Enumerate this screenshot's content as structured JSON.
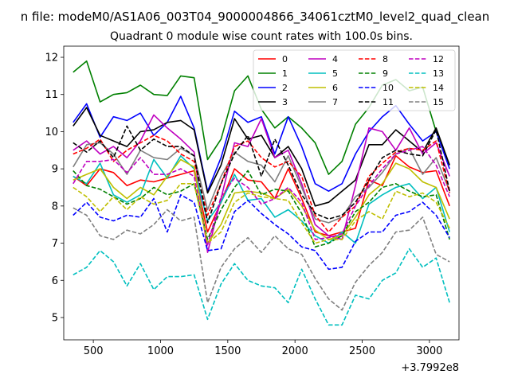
{
  "figure": {
    "suptitle": "n file: modeM0/AS1A06_003T04_9000004866_34061cztM0_level2_quad_clean",
    "title": "Quadrant 0 module wise count rates with 100.0s bins."
  },
  "chart_data": {
    "type": "line",
    "title": "Quadrant 0 module wise count rates with 100.0s bins.",
    "xlabel": "",
    "ylabel": "",
    "x_offset_label": "+3.7992e8",
    "x": [
      350,
      450,
      550,
      650,
      750,
      850,
      950,
      1050,
      1150,
      1250,
      1350,
      1450,
      1550,
      1650,
      1750,
      1850,
      1950,
      2050,
      2150,
      2250,
      2350,
      2450,
      2550,
      2650,
      2750,
      2850,
      2950,
      3050,
      3150
    ],
    "xlim": [
      280,
      3220
    ],
    "ylim": [
      4.4,
      12.3
    ],
    "xticks": [
      500,
      1000,
      1500,
      2000,
      2500,
      3000
    ],
    "yticks": [
      5,
      6,
      7,
      8,
      9,
      10,
      11,
      12
    ],
    "grid": false,
    "legend": {
      "placement": "top-right",
      "columns": 4
    },
    "series": [
      {
        "name": "0",
        "color": "#ff0000",
        "dash": "solid",
        "values": [
          8.8,
          8.55,
          9.0,
          8.9,
          8.55,
          8.7,
          8.65,
          8.75,
          8.85,
          8.95,
          7.3,
          8.1,
          9.0,
          8.7,
          8.65,
          8.2,
          9.0,
          8.2,
          7.3,
          7.2,
          7.3,
          7.4,
          8.7,
          8.55,
          9.35,
          9.05,
          8.9,
          8.95,
          8.0
        ]
      },
      {
        "name": "1",
        "color": "#008000",
        "dash": "solid",
        "values": [
          11.6,
          11.9,
          10.8,
          11.0,
          11.05,
          11.25,
          11.0,
          10.97,
          11.5,
          11.45,
          9.25,
          9.8,
          11.1,
          11.5,
          10.6,
          10.1,
          10.4,
          10.1,
          9.7,
          8.85,
          9.2,
          10.2,
          10.65,
          11.25,
          11.4,
          11.1,
          11.2,
          10.0,
          9.1
        ]
      },
      {
        "name": "2",
        "color": "#0000ff",
        "dash": "solid",
        "values": [
          10.25,
          10.75,
          9.85,
          10.4,
          10.3,
          10.5,
          9.9,
          10.25,
          10.95,
          10.1,
          8.4,
          9.3,
          10.55,
          10.25,
          10.4,
          9.4,
          10.4,
          9.6,
          8.6,
          8.4,
          8.6,
          9.4,
          10.0,
          10.4,
          10.7,
          10.2,
          9.75,
          10.0,
          9.0
        ]
      },
      {
        "name": "3",
        "color": "#000000",
        "dash": "solid",
        "values": [
          10.15,
          10.65,
          9.9,
          9.75,
          9.6,
          10.0,
          10.05,
          10.25,
          10.3,
          10.05,
          8.35,
          9.1,
          10.35,
          9.8,
          9.9,
          9.3,
          9.6,
          9.0,
          8.0,
          8.1,
          8.4,
          8.7,
          9.65,
          9.65,
          10.05,
          9.75,
          9.45,
          10.1,
          9.1
        ]
      },
      {
        "name": "4",
        "color": "#bf00bf",
        "dash": "solid",
        "values": [
          9.5,
          9.75,
          9.4,
          9.6,
          9.3,
          9.75,
          10.45,
          10.1,
          9.8,
          9.45,
          6.75,
          8.2,
          9.7,
          9.6,
          10.35,
          9.3,
          9.5,
          8.6,
          7.5,
          7.2,
          7.1,
          8.55,
          10.1,
          10.0,
          9.5,
          10.1,
          9.4,
          9.7,
          8.8
        ]
      },
      {
        "name": "5",
        "color": "#00bfbf",
        "dash": "solid",
        "values": [
          8.8,
          8.6,
          9.15,
          8.3,
          8.1,
          8.3,
          9.25,
          8.75,
          9.35,
          9.0,
          7.6,
          8.1,
          8.85,
          8.15,
          8.2,
          7.7,
          7.9,
          7.6,
          7.2,
          7.0,
          7.3,
          7.0,
          8.05,
          8.3,
          8.5,
          8.6,
          8.2,
          8.5,
          7.3
        ]
      },
      {
        "name": "6",
        "color": "#bfbf00",
        "dash": "solid",
        "values": [
          8.7,
          8.85,
          9.0,
          8.5,
          8.2,
          8.5,
          8.3,
          8.8,
          9.25,
          9.05,
          7.0,
          7.5,
          8.35,
          8.4,
          8.35,
          8.2,
          8.45,
          8.0,
          7.35,
          7.1,
          7.2,
          7.7,
          8.3,
          8.6,
          9.15,
          9.0,
          8.65,
          8.5,
          7.65
        ]
      },
      {
        "name": "7",
        "color": "#808080",
        "dash": "solid",
        "values": [
          9.05,
          9.65,
          9.7,
          9.4,
          8.85,
          9.5,
          9.3,
          9.25,
          9.55,
          9.35,
          7.9,
          8.8,
          9.45,
          9.2,
          9.1,
          8.65,
          9.35,
          8.5,
          7.65,
          7.55,
          7.7,
          8.25,
          8.5,
          8.9,
          9.4,
          9.55,
          8.85,
          9.3,
          8.4
        ]
      },
      {
        "name": "8",
        "color": "#ff0000",
        "dash": "dashed",
        "values": [
          9.4,
          9.55,
          9.8,
          9.2,
          9.5,
          9.7,
          9.9,
          9.75,
          9.4,
          9.2,
          7.75,
          8.6,
          9.6,
          9.75,
          9.3,
          9.05,
          9.2,
          8.8,
          7.75,
          7.3,
          7.7,
          8.0,
          8.8,
          9.15,
          9.45,
          9.55,
          9.5,
          9.75,
          8.35
        ]
      },
      {
        "name": "9",
        "color": "#008000",
        "dash": "dashed",
        "values": [
          8.95,
          8.55,
          8.45,
          8.25,
          8.05,
          8.2,
          8.5,
          8.3,
          8.4,
          8.6,
          7.1,
          7.9,
          8.5,
          8.95,
          8.3,
          8.45,
          8.4,
          7.8,
          6.9,
          7.0,
          7.2,
          7.85,
          8.1,
          8.5,
          8.6,
          8.4,
          8.25,
          8.3,
          7.1
        ]
      },
      {
        "name": "10",
        "color": "#0000ff",
        "dash": "dashed",
        "values": [
          7.75,
          8.1,
          7.7,
          7.6,
          7.75,
          7.7,
          8.2,
          7.3,
          8.3,
          8.1,
          6.8,
          6.85,
          7.85,
          8.15,
          7.8,
          7.5,
          7.25,
          6.9,
          6.8,
          6.3,
          6.35,
          7.05,
          7.3,
          7.3,
          7.75,
          7.85,
          8.1,
          7.75,
          7.15
        ]
      },
      {
        "name": "11",
        "color": "#000000",
        "dash": "dashed",
        "values": [
          9.7,
          9.45,
          9.75,
          9.3,
          10.15,
          9.5,
          9.8,
          9.6,
          9.6,
          9.35,
          7.55,
          8.6,
          9.4,
          9.9,
          8.8,
          9.8,
          9.1,
          8.3,
          7.8,
          7.65,
          7.75,
          8.1,
          8.7,
          9.3,
          9.5,
          9.4,
          9.35,
          10.05,
          8.4
        ]
      },
      {
        "name": "12",
        "color": "#bf00bf",
        "dash": "dashed",
        "values": [
          8.6,
          9.2,
          9.2,
          9.25,
          8.9,
          9.3,
          8.85,
          8.85,
          9.0,
          8.8,
          6.95,
          8.25,
          8.75,
          8.5,
          8.05,
          8.2,
          8.5,
          8.1,
          7.1,
          7.15,
          7.25,
          8.0,
          8.55,
          9.0,
          9.4,
          9.5,
          9.6,
          9.1,
          8.25
        ]
      },
      {
        "name": "13",
        "color": "#00bfbf",
        "dash": "dashed",
        "values": [
          6.15,
          6.35,
          6.8,
          6.5,
          5.85,
          6.45,
          5.75,
          6.1,
          6.1,
          6.15,
          4.95,
          5.9,
          6.45,
          6.0,
          5.85,
          5.8,
          5.4,
          6.3,
          5.5,
          4.8,
          4.8,
          5.6,
          5.5,
          6.0,
          6.2,
          6.85,
          6.35,
          6.6,
          5.4
        ]
      },
      {
        "name": "14",
        "color": "#bfbf00",
        "dash": "dashed",
        "values": [
          8.5,
          8.25,
          7.85,
          8.25,
          7.9,
          8.25,
          8.05,
          8.15,
          8.6,
          8.6,
          7.0,
          7.3,
          8.1,
          8.35,
          8.25,
          8.2,
          8.15,
          7.55,
          7.0,
          7.1,
          7.1,
          7.6,
          7.85,
          7.65,
          8.4,
          8.25,
          8.35,
          8.1,
          7.4
        ]
      },
      {
        "name": "15",
        "color": "#808080",
        "dash": "dashed",
        "values": [
          7.95,
          7.75,
          7.2,
          7.1,
          7.35,
          7.25,
          7.5,
          7.9,
          7.6,
          7.7,
          5.4,
          6.35,
          6.85,
          7.15,
          6.75,
          7.2,
          6.85,
          6.7,
          6.05,
          5.5,
          5.2,
          5.95,
          6.4,
          6.75,
          7.3,
          7.35,
          7.7,
          6.7,
          6.5
        ]
      }
    ]
  }
}
